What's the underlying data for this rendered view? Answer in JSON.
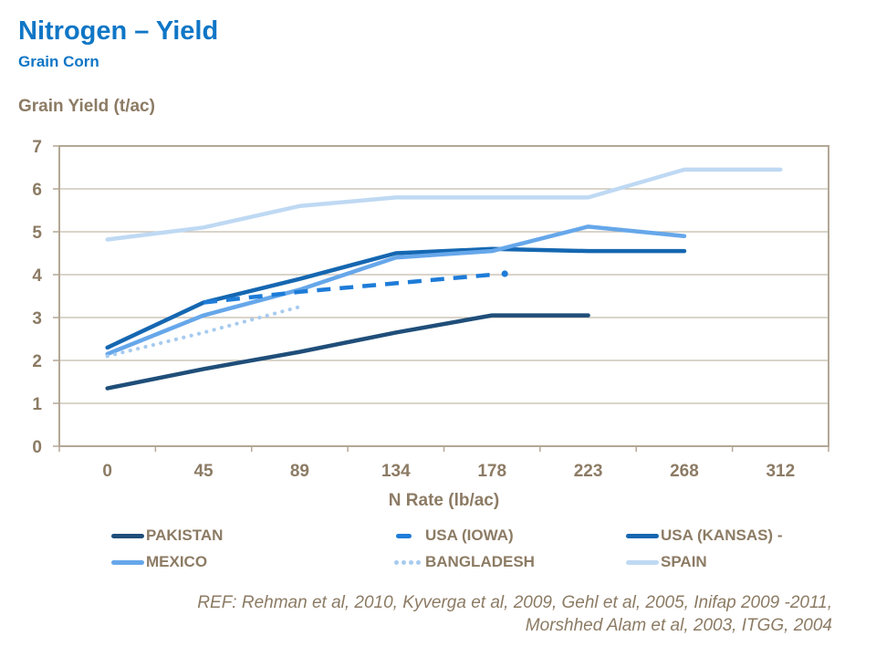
{
  "header": {
    "title": "Nitrogen – Yield",
    "subtitle": "Grain Corn"
  },
  "colors": {
    "title_blue": "#0F76C6",
    "axis_text": "#8C7B64",
    "plot_border": "#B3A795",
    "gridline": "#C4BBAB"
  },
  "chart_data": {
    "type": "line",
    "title": "Nitrogen – Yield",
    "subtitle": "Grain Corn",
    "xlabel": "N Rate (lb/ac)",
    "ylabel": "Grain Yield (t/ac)",
    "categories": [
      "0",
      "45",
      "89",
      "134",
      "178",
      "223",
      "268",
      "312"
    ],
    "y_ticks": [
      "0",
      "1",
      "2",
      "3",
      "4",
      "5",
      "6",
      "7"
    ],
    "ylim": [
      0,
      7
    ],
    "grid": "horizontal",
    "legend_position": "bottom",
    "series": [
      {
        "name": "PAKISTAN",
        "color": "#1F4E79",
        "style": "solid",
        "values": [
          1.35,
          1.8,
          2.2,
          2.65,
          3.05,
          3.05,
          null,
          null
        ]
      },
      {
        "name": "USA (IOWA)",
        "color": "#1E7CD8",
        "style": "dashed",
        "end_dot": true,
        "values": [
          null,
          3.35,
          3.6,
          3.8,
          4.0,
          null,
          null,
          null
        ]
      },
      {
        "name": "USA (KANSAS) -",
        "color": "#1567B1",
        "style": "solid",
        "values": [
          2.3,
          3.35,
          3.9,
          4.5,
          4.6,
          4.55,
          4.55,
          null
        ]
      },
      {
        "name": "MEXICO",
        "color": "#66A7EA",
        "style": "solid",
        "values": [
          2.15,
          3.05,
          3.65,
          4.4,
          4.55,
          5.12,
          4.9,
          null
        ]
      },
      {
        "name": "BANGLADESH",
        "color": "#A7CBEF",
        "style": "dotted",
        "values": [
          2.1,
          2.65,
          3.25,
          null,
          null,
          null,
          null,
          null
        ]
      },
      {
        "name": "SPAIN",
        "color": "#BFD9F3",
        "style": "solid",
        "values": [
          4.82,
          5.1,
          5.6,
          5.8,
          5.8,
          5.8,
          6.45,
          6.45
        ]
      }
    ]
  },
  "footer": {
    "line1": "REF: Rehman et al, 2010, Kyverga et al, 2009, Gehl et al, 2005, Inifap 2009 -2011,",
    "line2": "Morshhed Alam et al, 2003, ITGG, 2004"
  }
}
